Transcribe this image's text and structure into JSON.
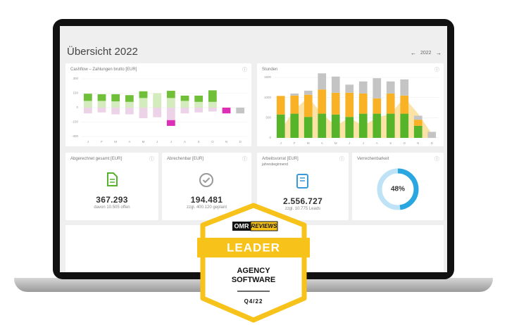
{
  "header": {
    "title": "Übersicht 2022",
    "prev": "←",
    "year": "2022",
    "next": "→"
  },
  "cashflow": {
    "type": "bar",
    "title": "Cashflow – Zahlungen brutto [EUR]",
    "categories": [
      "J",
      "F",
      "M",
      "A",
      "M",
      "J",
      "J",
      "A",
      "S",
      "O",
      "N",
      "D"
    ],
    "series": [
      {
        "color": "#d3ebbd",
        "values": [
          70,
          70,
          65,
          60,
          100,
          150,
          100,
          70,
          60,
          60,
          0,
          0
        ]
      },
      {
        "color": "#6fc038",
        "values": [
          75,
          70,
          75,
          70,
          70,
          0,
          75,
          55,
          65,
          120,
          0,
          0
        ]
      },
      {
        "color": "#ecd3e8",
        "values": [
          -60,
          -50,
          -70,
          -70,
          -110,
          -100,
          -130,
          -60,
          -50,
          -40,
          0,
          0
        ]
      },
      {
        "color": "#dd2fb6",
        "values": [
          0,
          0,
          0,
          0,
          0,
          0,
          -60,
          0,
          0,
          0,
          -60,
          0
        ]
      },
      {
        "color": "#c4c4c4",
        "values": [
          0,
          0,
          0,
          0,
          0,
          0,
          0,
          0,
          0,
          0,
          0,
          -60
        ]
      }
    ],
    "ylim": [
      -300,
      300
    ],
    "yticks": [
      300,
      150,
      0,
      -150,
      -300
    ]
  },
  "hours": {
    "type": "bar",
    "title": "Stunden",
    "categories": [
      "J",
      "F",
      "M",
      "A",
      "M",
      "J",
      "J",
      "A",
      "S",
      "O",
      "N",
      "D"
    ],
    "area": {
      "color": "#fbe3a6",
      "values": [
        200,
        700,
        1000,
        600,
        300,
        500,
        300,
        500,
        600,
        1000,
        600,
        100
      ]
    },
    "series": [
      {
        "color": "#56b42a",
        "values": [
          580,
          600,
          520,
          600,
          580,
          520,
          600,
          600,
          600,
          600,
          300,
          0
        ]
      },
      {
        "color": "#f9b125",
        "values": [
          460,
          450,
          550,
          600,
          540,
          600,
          500,
          380,
          500,
          450,
          150,
          0
        ]
      },
      {
        "color": "#c4c4c4",
        "values": [
          0,
          50,
          100,
          400,
          400,
          200,
          300,
          500,
          300,
          400,
          100,
          150
        ]
      }
    ],
    "ylim": [
      0,
      1500
    ],
    "yticks": [
      1500,
      1000,
      500,
      0
    ]
  },
  "cards": [
    {
      "title": "Abgerechnet gesamt [EUR]",
      "value": "367.293",
      "note": "davon 10.505 offen"
    },
    {
      "title": "Abrechenbar [EUR]",
      "value": "194.481",
      "note": "zzgl. 400.120 geplant"
    },
    {
      "title": "Arbeitsvorrat [EUR]",
      "subtitle": "jahresbeginnend",
      "value": "2.556.727",
      "note": "zzgl. 10.775 Leads"
    }
  ],
  "utilization": {
    "title": "Verrechenbarkeit",
    "value": 48,
    "label": "48%"
  },
  "badge": {
    "brand": "OMR",
    "brand_suffix": "REVIEWS",
    "rank": "LEADER",
    "line1": "AGENCY",
    "line2": "SOFTWARE",
    "period": "Q4/22"
  }
}
